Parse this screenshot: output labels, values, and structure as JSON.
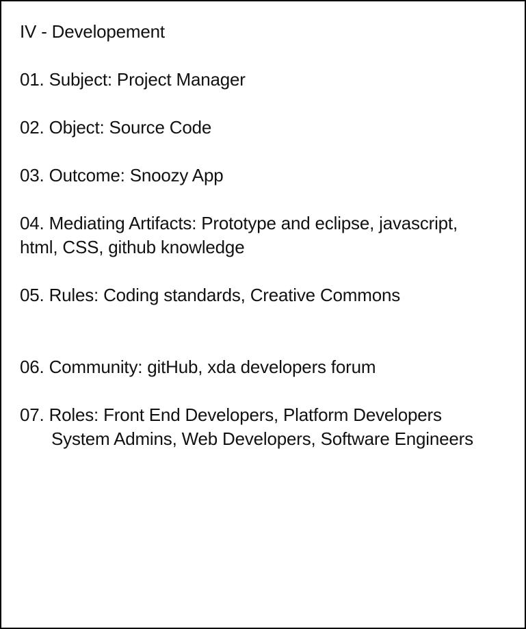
{
  "document": {
    "title": "IV - Developement",
    "items": [
      {
        "line": "01. Subject: Project Manager"
      },
      {
        "line": "02. Object: Source Code"
      },
      {
        "line": "03. Outcome: Snoozy App"
      },
      {
        "line": "04. Mediating Artifacts: Prototype and eclipse, javascript,",
        "continuation": "html, CSS, github knowledge"
      },
      {
        "line": "05. Rules: Coding standards, Creative Commons"
      },
      {
        "line": "06. Community: gitHub, xda developers forum"
      },
      {
        "line": "07. Roles: Front End Developers, Platform Developers",
        "continuation": "System Admins, Web Developers, Software Engineers"
      }
    ]
  }
}
